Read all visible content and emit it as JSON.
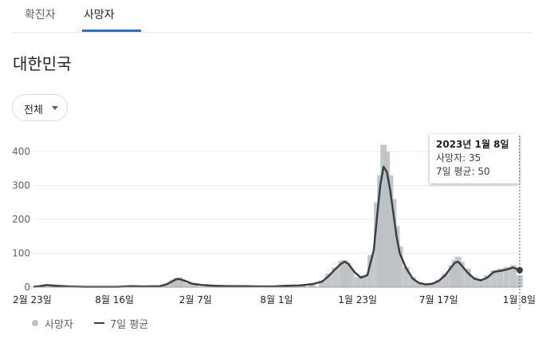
{
  "tabs": [
    {
      "label": "확진자",
      "active": false
    },
    {
      "label": "사망자",
      "active": true
    }
  ],
  "colors": {
    "accent": "#1a73e8",
    "bars": "#bdc1c6",
    "line": "#3c4043"
  },
  "region": "대한민국",
  "filter": {
    "selected": "전체"
  },
  "tooltip": {
    "date": "2023년 1월 8일",
    "deaths": "사망자: 35",
    "avg": "7일 평균: 50"
  },
  "legend": {
    "daily": "사망자",
    "avg": "7일 평균"
  },
  "chart_data": {
    "type": "bar",
    "title": "",
    "xlabel": "",
    "ylabel": "",
    "ylim": [
      0,
      460
    ],
    "yticks": [
      0,
      100,
      200,
      300,
      400
    ],
    "x_range": [
      "2020-02-23",
      "2023-01-08"
    ],
    "xtick_labels": [
      "2월 23일",
      "8월 16일",
      "2월 7일",
      "8월 1일",
      "1월 23일",
      "7월 17일",
      "1월 8일"
    ],
    "xtick_dates": [
      "2020-02-23",
      "2020-08-16",
      "2021-02-07",
      "2021-08-01",
      "2022-01-23",
      "2022-07-17",
      "2023-01-08"
    ],
    "grid": true,
    "legend_position": "bottom-left",
    "series": [
      {
        "name": "사망자",
        "type": "bar",
        "points": [
          [
            "2020-02-23",
            2
          ],
          [
            "2020-03-15",
            7
          ],
          [
            "2020-04-05",
            5
          ],
          [
            "2020-05-03",
            2
          ],
          [
            "2020-06-07",
            1
          ],
          [
            "2020-07-05",
            1
          ],
          [
            "2020-08-09",
            1
          ],
          [
            "2020-08-30",
            3
          ],
          [
            "2020-09-20",
            4
          ],
          [
            "2020-10-18",
            3
          ],
          [
            "2020-11-22",
            4
          ],
          [
            "2020-12-06",
            10
          ],
          [
            "2020-12-20",
            22
          ],
          [
            "2020-12-27",
            27
          ],
          [
            "2021-01-03",
            28
          ],
          [
            "2021-01-10",
            23
          ],
          [
            "2021-01-24",
            12
          ],
          [
            "2021-02-07",
            9
          ],
          [
            "2021-03-07",
            7
          ],
          [
            "2021-04-04",
            4
          ],
          [
            "2021-05-09",
            4
          ],
          [
            "2021-06-13",
            3
          ],
          [
            "2021-07-11",
            2
          ],
          [
            "2021-08-08",
            4
          ],
          [
            "2021-09-05",
            6
          ],
          [
            "2021-09-26",
            8
          ],
          [
            "2021-10-17",
            12
          ],
          [
            "2021-11-07",
            20
          ],
          [
            "2021-11-21",
            40
          ],
          [
            "2021-12-05",
            58
          ],
          [
            "2021-12-19",
            78
          ],
          [
            "2021-12-26",
            80
          ],
          [
            "2022-01-02",
            72
          ],
          [
            "2022-01-09",
            55
          ],
          [
            "2022-01-23",
            30
          ],
          [
            "2022-02-06",
            35
          ],
          [
            "2022-02-20",
            95
          ],
          [
            "2022-03-06",
            250
          ],
          [
            "2022-03-13",
            330
          ],
          [
            "2022-03-20",
            420
          ],
          [
            "2022-03-27",
            400
          ],
          [
            "2022-04-03",
            330
          ],
          [
            "2022-04-10",
            260
          ],
          [
            "2022-04-17",
            180
          ],
          [
            "2022-04-24",
            120
          ],
          [
            "2022-05-08",
            60
          ],
          [
            "2022-05-22",
            30
          ],
          [
            "2022-06-05",
            15
          ],
          [
            "2022-06-19",
            10
          ],
          [
            "2022-07-03",
            12
          ],
          [
            "2022-07-17",
            22
          ],
          [
            "2022-07-31",
            40
          ],
          [
            "2022-08-14",
            65
          ],
          [
            "2022-08-21",
            80
          ],
          [
            "2022-08-28",
            90
          ],
          [
            "2022-09-04",
            75
          ],
          [
            "2022-09-18",
            55
          ],
          [
            "2022-10-02",
            30
          ],
          [
            "2022-10-16",
            25
          ],
          [
            "2022-10-30",
            35
          ],
          [
            "2022-11-13",
            50
          ],
          [
            "2022-11-27",
            55
          ],
          [
            "2022-12-11",
            60
          ],
          [
            "2022-12-25",
            65
          ],
          [
            "2023-01-08",
            35
          ]
        ]
      },
      {
        "name": "7일 평균",
        "type": "line",
        "points": [
          [
            "2020-02-23",
            1
          ],
          [
            "2020-03-08",
            3
          ],
          [
            "2020-03-22",
            6
          ],
          [
            "2020-04-12",
            4
          ],
          [
            "2020-05-10",
            2
          ],
          [
            "2020-06-14",
            1
          ],
          [
            "2020-07-19",
            1
          ],
          [
            "2020-08-23",
            1
          ],
          [
            "2020-09-20",
            3
          ],
          [
            "2020-10-18",
            2
          ],
          [
            "2020-11-22",
            3
          ],
          [
            "2020-12-06",
            8
          ],
          [
            "2020-12-20",
            18
          ],
          [
            "2020-12-27",
            23
          ],
          [
            "2021-01-03",
            24
          ],
          [
            "2021-01-17",
            18
          ],
          [
            "2021-01-31",
            10
          ],
          [
            "2021-02-21",
            6
          ],
          [
            "2021-03-21",
            4
          ],
          [
            "2021-04-18",
            3
          ],
          [
            "2021-05-23",
            3
          ],
          [
            "2021-06-27",
            2
          ],
          [
            "2021-07-25",
            2
          ],
          [
            "2021-08-22",
            4
          ],
          [
            "2021-09-19",
            5
          ],
          [
            "2021-10-17",
            9
          ],
          [
            "2021-11-07",
            16
          ],
          [
            "2021-11-21",
            32
          ],
          [
            "2021-12-05",
            52
          ],
          [
            "2021-12-19",
            70
          ],
          [
            "2021-12-26",
            75
          ],
          [
            "2022-01-02",
            70
          ],
          [
            "2022-01-16",
            45
          ],
          [
            "2022-01-30",
            28
          ],
          [
            "2022-02-13",
            35
          ],
          [
            "2022-02-27",
            110
          ],
          [
            "2022-03-06",
            210
          ],
          [
            "2022-03-13",
            300
          ],
          [
            "2022-03-20",
            355
          ],
          [
            "2022-03-27",
            340
          ],
          [
            "2022-04-03",
            290
          ],
          [
            "2022-04-10",
            220
          ],
          [
            "2022-04-17",
            150
          ],
          [
            "2022-04-24",
            100
          ],
          [
            "2022-05-08",
            55
          ],
          [
            "2022-05-22",
            25
          ],
          [
            "2022-06-05",
            12
          ],
          [
            "2022-06-19",
            8
          ],
          [
            "2022-07-03",
            10
          ],
          [
            "2022-07-17",
            18
          ],
          [
            "2022-07-31",
            35
          ],
          [
            "2022-08-14",
            60
          ],
          [
            "2022-08-21",
            72
          ],
          [
            "2022-08-28",
            75
          ],
          [
            "2022-09-04",
            65
          ],
          [
            "2022-09-18",
            42
          ],
          [
            "2022-10-02",
            25
          ],
          [
            "2022-10-16",
            20
          ],
          [
            "2022-10-30",
            28
          ],
          [
            "2022-11-13",
            45
          ],
          [
            "2022-11-27",
            48
          ],
          [
            "2022-12-11",
            52
          ],
          [
            "2022-12-25",
            58
          ],
          [
            "2023-01-08",
            50
          ]
        ]
      }
    ]
  }
}
